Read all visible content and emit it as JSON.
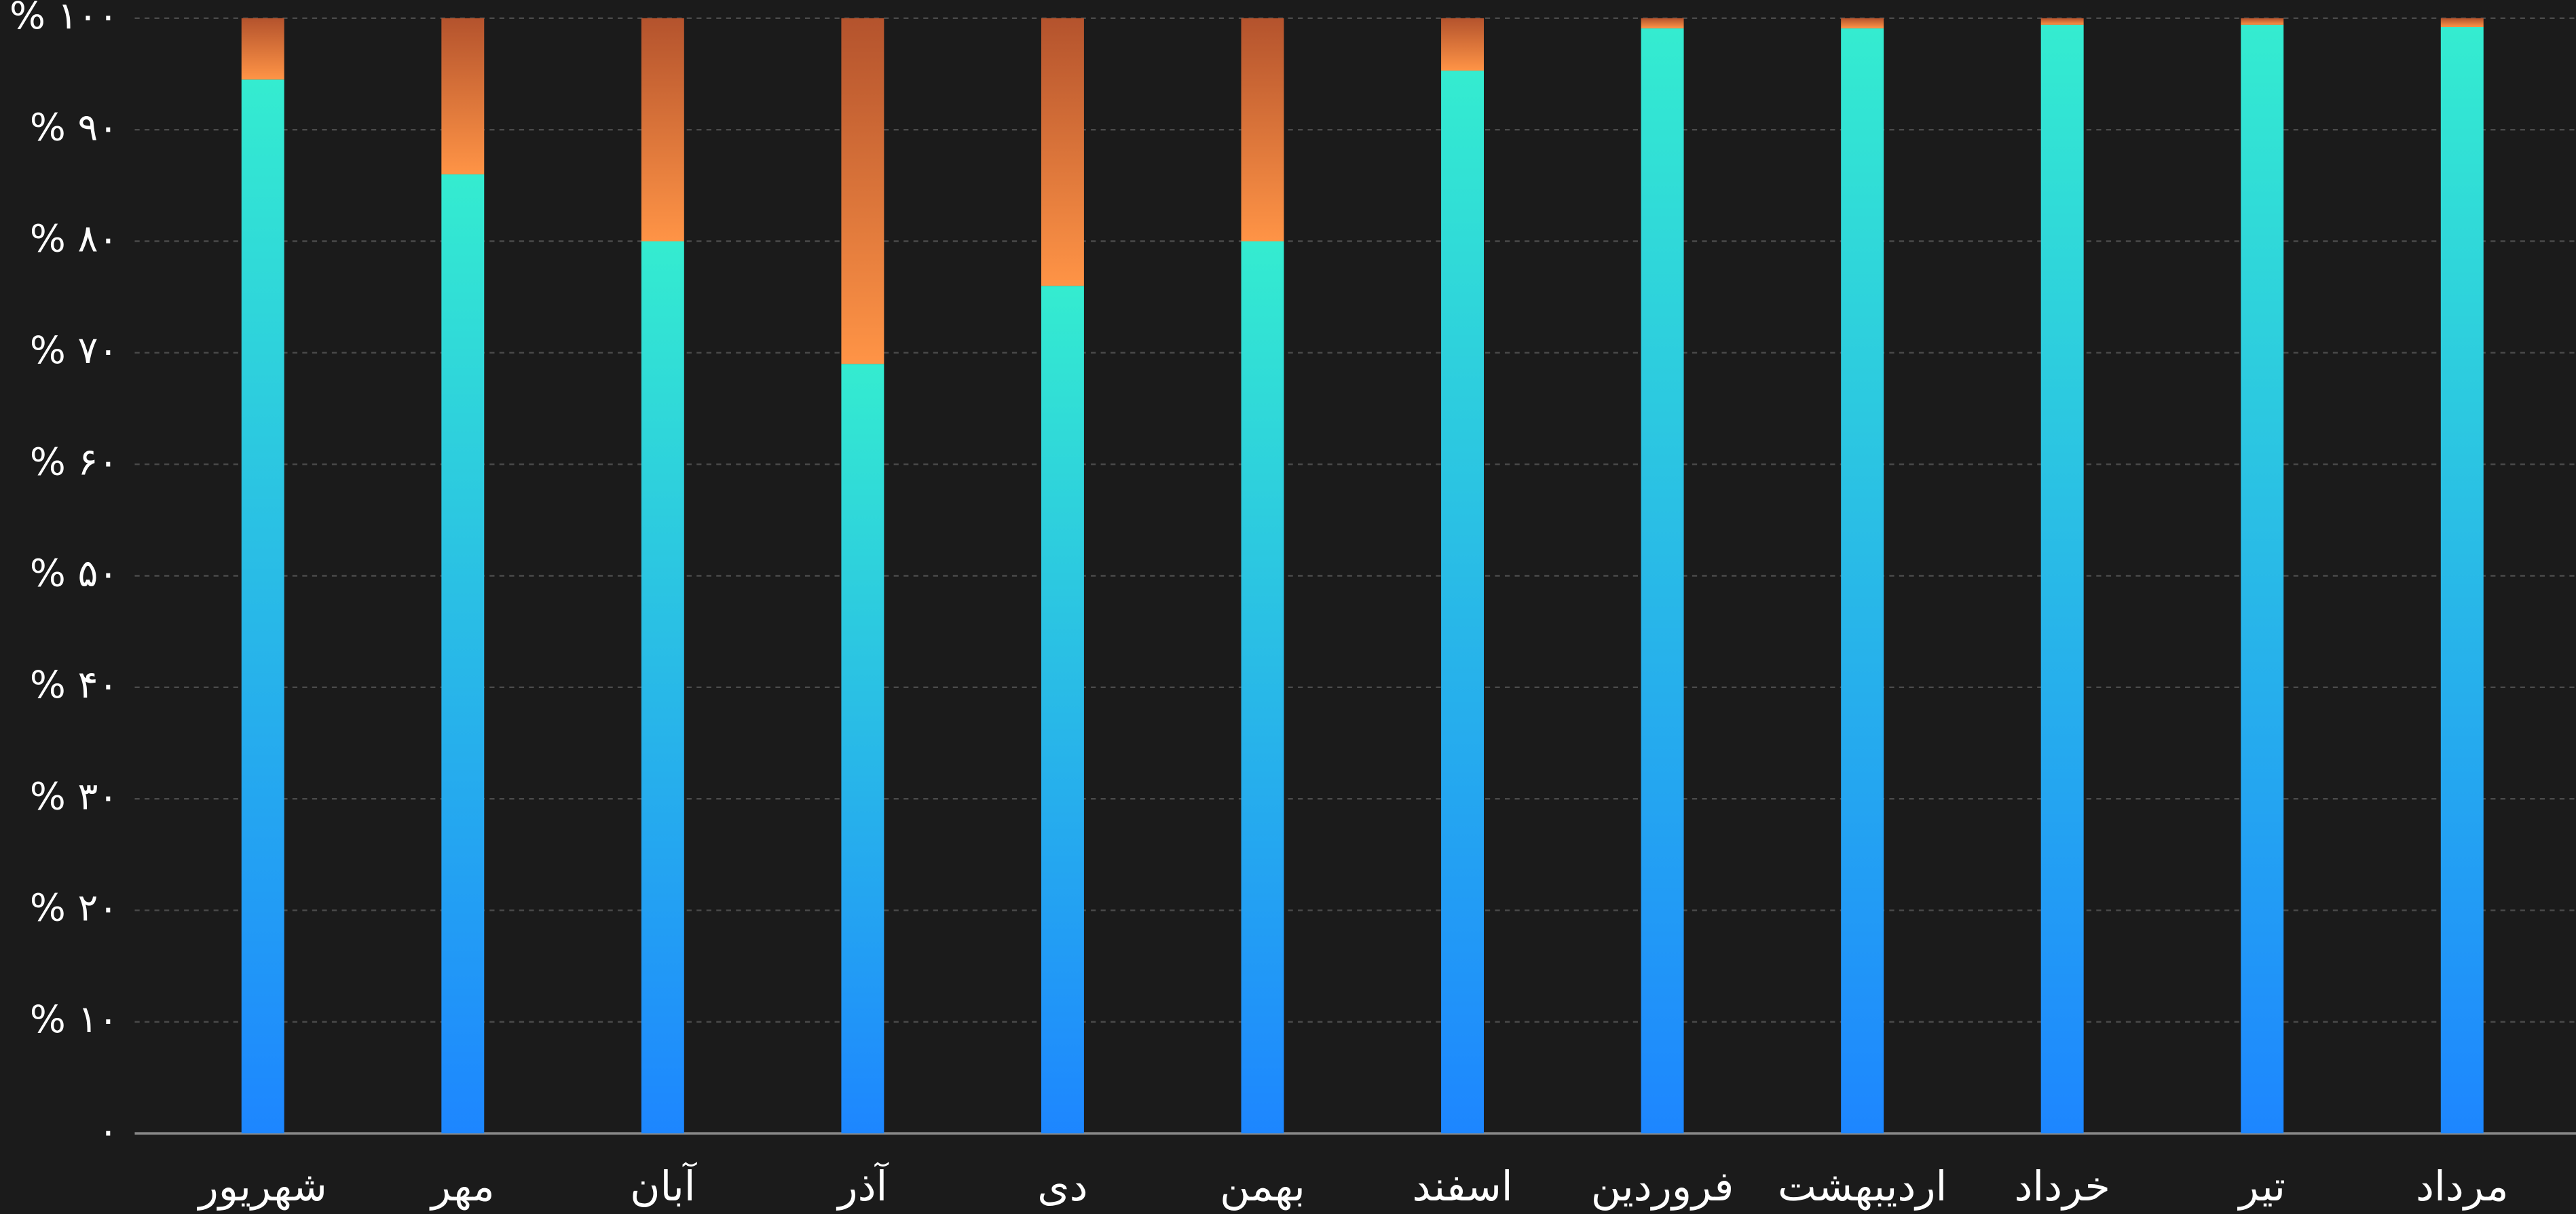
{
  "chart_data": {
    "type": "bar",
    "stacked": true,
    "categories": [
      "شهریور",
      "مهر",
      "آبان",
      "آذر",
      "دی",
      "بهمن",
      "اسفند",
      "فروردین",
      "اردیبهشت",
      "خرداد",
      "تیر",
      "مرداد"
    ],
    "series": [
      {
        "colors": [
          "#1d86ff",
          "#34ecd0"
        ],
        "values": [
          94.5,
          86,
          80,
          69,
          76,
          80,
          95.3,
          99.1,
          99.1,
          99.4,
          99.4,
          99.2
        ]
      },
      {
        "colors": [
          "#ff9446",
          "#b4532d"
        ],
        "values": [
          5.5,
          14,
          20,
          31,
          24,
          20,
          4.7,
          0.9,
          0.9,
          0.6,
          0.6,
          0.8
        ]
      }
    ],
    "ylim": [
      0,
      100
    ],
    "yticks": [
      {
        "value": 0,
        "label": "۰"
      },
      {
        "value": 10,
        "label": "% ۱۰"
      },
      {
        "value": 20,
        "label": "% ۲۰"
      },
      {
        "value": 30,
        "label": "% ۳۰"
      },
      {
        "value": 40,
        "label": "% ۴۰"
      },
      {
        "value": 50,
        "label": "% ۵۰"
      },
      {
        "value": 60,
        "label": "% ۶۰"
      },
      {
        "value": 70,
        "label": "% ۷۰"
      },
      {
        "value": 80,
        "label": "% ۸۰"
      },
      {
        "value": 90,
        "label": "% ۹۰"
      },
      {
        "value": 100,
        "label": "% ۱۰۰"
      }
    ],
    "grid": true
  }
}
